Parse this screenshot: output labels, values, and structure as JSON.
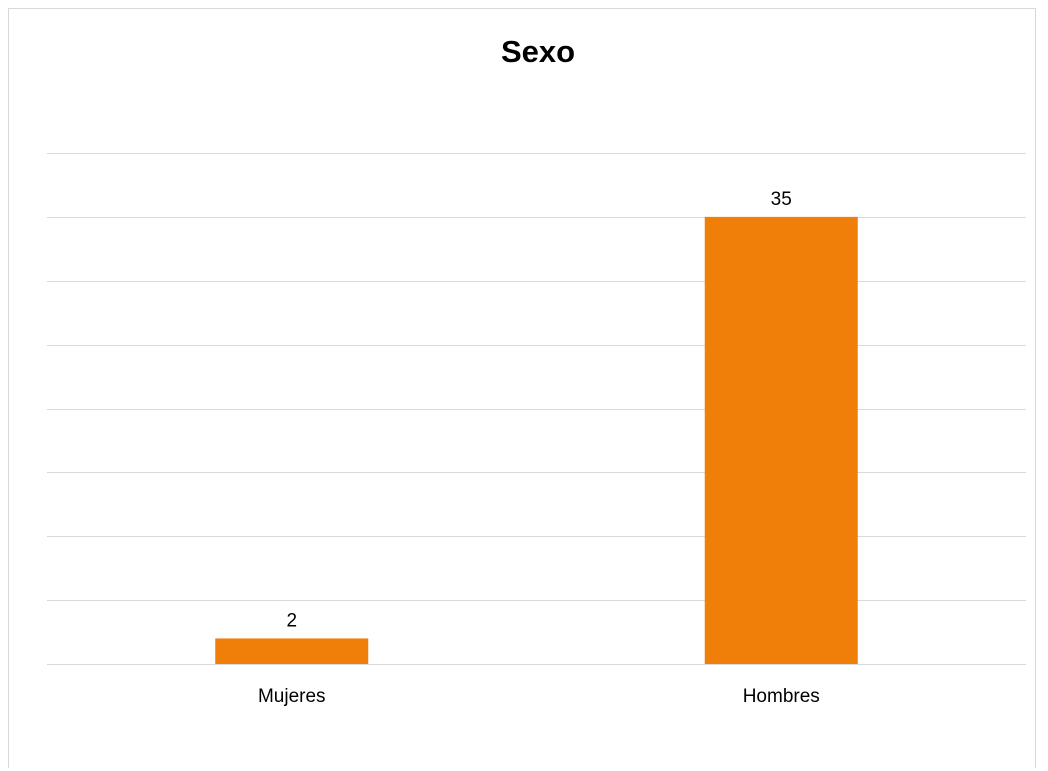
{
  "chart_data": {
    "type": "bar",
    "title": "Sexo",
    "categories": [
      "Mujeres",
      "Hombres"
    ],
    "values": [
      2,
      35
    ],
    "data_labels": [
      "2",
      "35"
    ],
    "xlabel": "",
    "ylabel": "",
    "ylim": [
      0,
      40
    ],
    "gridlines": 8,
    "grid": true,
    "legend": "none",
    "bar_color": "#f07f09",
    "grid_color": "#d9d9d9"
  }
}
